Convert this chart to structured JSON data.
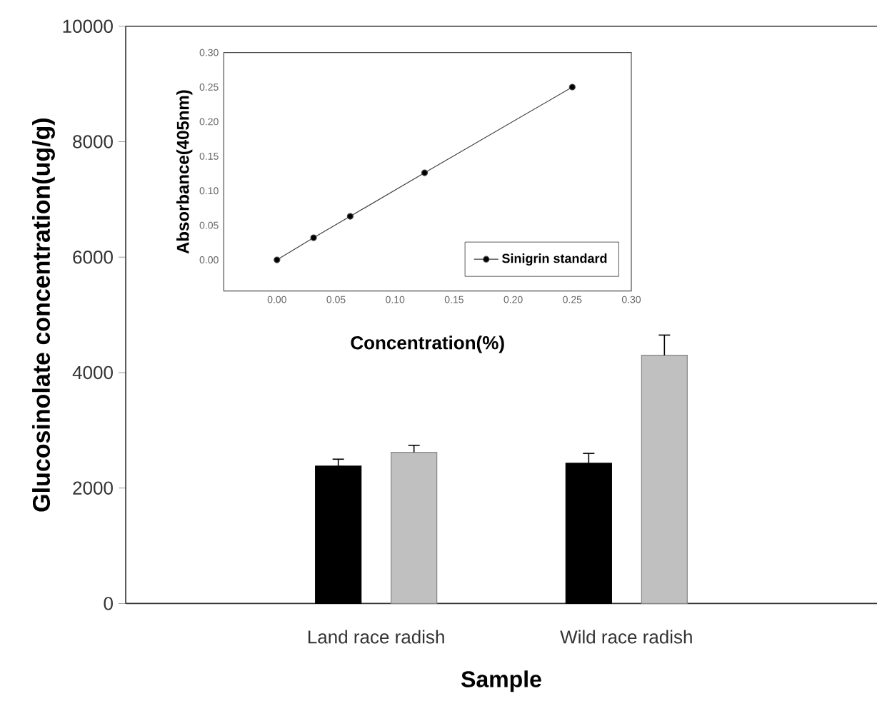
{
  "chart_data": [
    {
      "type": "bar",
      "categories": [
        "Land race radish",
        "Wild race radish"
      ],
      "xlabel": "Sample",
      "ylabel": "Glucosinolate concentration(ug/g)",
      "ylim": [
        0,
        10000
      ],
      "yticks": [
        0,
        2000,
        4000,
        6000,
        8000,
        10000
      ],
      "series": [
        {
          "color": "#000000",
          "values": [
            2380,
            2430
          ],
          "errors": [
            120,
            170
          ]
        },
        {
          "color": "#c0c0c0",
          "values": [
            2620,
            4300
          ],
          "errors": [
            120,
            350
          ]
        }
      ]
    },
    {
      "type": "line",
      "xlabel": "Concentration(%)",
      "ylabel": "Absorbance(405nm)",
      "x": [
        0,
        0.031,
        0.062,
        0.125,
        0.25
      ],
      "xlim": [
        -0.045,
        0.3
      ],
      "ylim": [
        -0.045,
        0.3
      ],
      "xticks": [
        {
          "value": 0,
          "label": "0.00"
        },
        {
          "value": 0.05,
          "label": "0.05"
        },
        {
          "value": 0.1,
          "label": "0.10"
        },
        {
          "value": 0.15,
          "label": "0.15"
        },
        {
          "value": 0.2,
          "label": "0.20"
        },
        {
          "value": 0.25,
          "label": "0.25"
        },
        {
          "value": 0.3,
          "label": "0.30"
        }
      ],
      "yticks": [
        {
          "value": 0,
          "label": "0.00"
        },
        {
          "value": 0.05,
          "label": "0.05"
        },
        {
          "value": 0.1,
          "label": "0.10"
        },
        {
          "value": 0.15,
          "label": "0.15"
        },
        {
          "value": 0.2,
          "label": "0.20"
        },
        {
          "value": 0.25,
          "label": "0.25"
        },
        {
          "value": 0.3,
          "label": "0.30"
        }
      ],
      "marker": "circle",
      "legend": "bottom right",
      "series": [
        {
          "name": "Sinigrin standard",
          "color": "#000000",
          "values": [
            0,
            0.032,
            0.063,
            0.126,
            0.25
          ]
        }
      ]
    }
  ]
}
